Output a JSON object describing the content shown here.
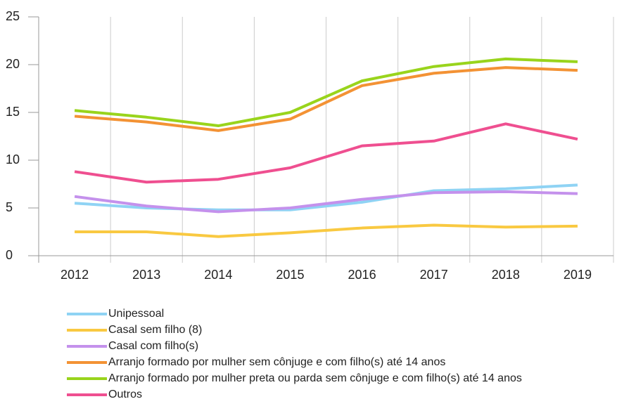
{
  "chart_data": {
    "type": "line",
    "categories": [
      "2012",
      "2013",
      "2014",
      "2015",
      "2016",
      "2017",
      "2018",
      "2019"
    ],
    "series": [
      {
        "name": "Unipessoal",
        "color": "#8fd3f4",
        "values": [
          5.5,
          5.0,
          4.8,
          4.8,
          5.6,
          6.8,
          7.0,
          7.4
        ]
      },
      {
        "name": "Casal sem filho (8)",
        "color": "#f9c941",
        "values": [
          2.5,
          2.5,
          2.0,
          2.4,
          2.9,
          3.2,
          3.0,
          3.1
        ]
      },
      {
        "name": "Casal com filho(s)",
        "color": "#c491ec",
        "values": [
          6.2,
          5.2,
          4.6,
          5.0,
          5.9,
          6.6,
          6.7,
          6.5
        ]
      },
      {
        "name": "Arranjo formado por mulher sem cônjuge e com filho(s) até 14 anos",
        "color": "#f39234",
        "values": [
          14.6,
          14.0,
          13.1,
          14.3,
          17.8,
          19.1,
          19.7,
          19.4
        ]
      },
      {
        "name": "Arranjo formado por mulher preta ou parda sem cônjuge e com filho(s) até 14 anos",
        "color": "#99d41c",
        "values": [
          15.2,
          14.5,
          13.6,
          15.0,
          18.3,
          19.8,
          20.6,
          20.3
        ]
      },
      {
        "name": "Outros",
        "color": "#ef4f90",
        "values": [
          8.8,
          7.7,
          8.0,
          9.2,
          11.5,
          12.0,
          13.8,
          12.2
        ]
      }
    ],
    "ylim": [
      0,
      25
    ],
    "yticks": [
      0,
      5,
      10,
      15,
      20,
      25
    ],
    "grid": true
  }
}
